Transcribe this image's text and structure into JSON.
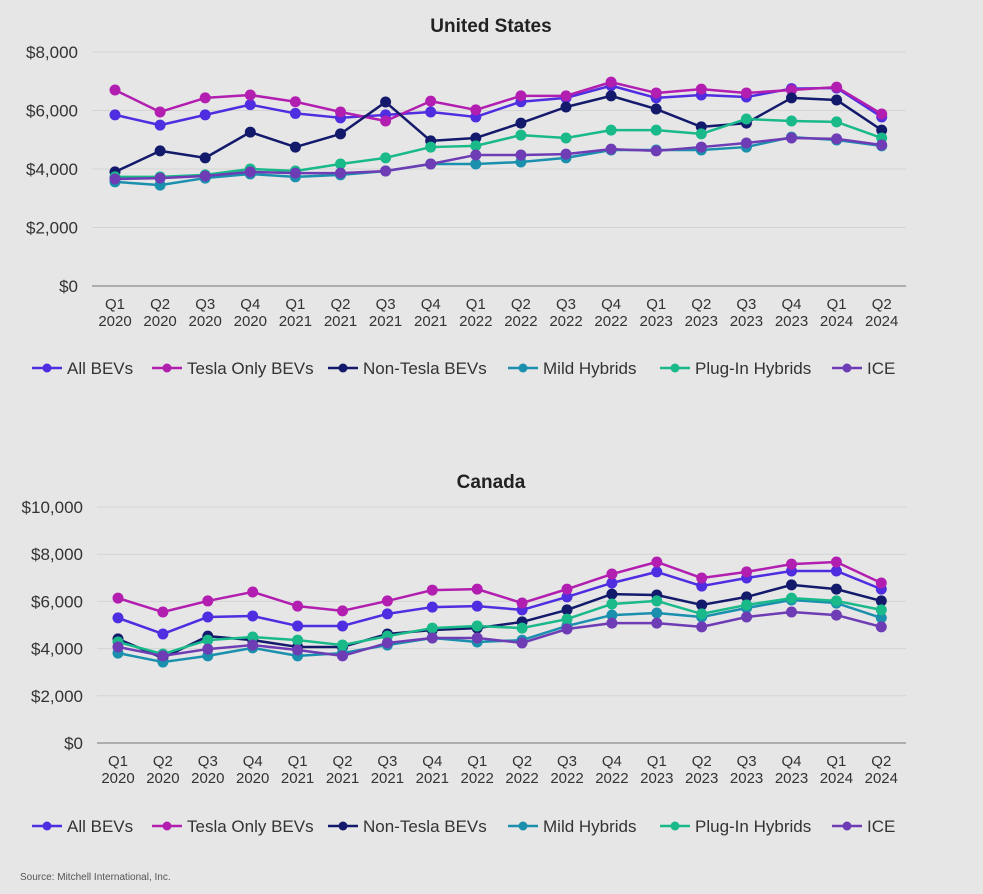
{
  "source": "Source: Mitchell International, Inc.",
  "chart_data": [
    {
      "type": "line",
      "title": "United States",
      "xlabel": "",
      "ylabel": "",
      "ylim": [
        0,
        8000
      ],
      "yticks": [
        0,
        2000,
        4000,
        6000,
        8000
      ],
      "ytick_labels": [
        "$0",
        "$2,000",
        "$4,000",
        "$6,000",
        "$8,000"
      ],
      "grid": true,
      "legend_position": "bottom",
      "categories": [
        "Q1 2020",
        "Q2 2020",
        "Q3 2020",
        "Q4 2020",
        "Q1 2021",
        "Q2 2021",
        "Q3 2021",
        "Q4 2021",
        "Q1 2022",
        "Q2 2022",
        "Q3 2022",
        "Q4 2022",
        "Q1 2023",
        "Q2 2023",
        "Q3 2023",
        "Q4 2023",
        "Q1 2024",
        "Q2 2024"
      ],
      "series": [
        {
          "name": "All BEVs",
          "color": "#4f2de0",
          "values": [
            5850,
            5500,
            5850,
            6200,
            5900,
            5750,
            5850,
            5950,
            5780,
            6300,
            6430,
            6850,
            6430,
            6530,
            6460,
            6750,
            6770,
            5780
          ]
        },
        {
          "name": "Tesla Only BEVs",
          "color": "#b21fb0",
          "values": [
            6700,
            5950,
            6430,
            6530,
            6300,
            5950,
            5640,
            6320,
            6020,
            6500,
            6500,
            6970,
            6600,
            6730,
            6600,
            6700,
            6800,
            5880
          ]
        },
        {
          "name": "Non-Tesla BEVs",
          "color": "#141a6b",
          "values": [
            3900,
            4620,
            4380,
            5260,
            4750,
            5200,
            6290,
            4960,
            5060,
            5570,
            6120,
            6500,
            6050,
            5440,
            5570,
            6430,
            6360,
            5330
          ]
        },
        {
          "name": "Mild Hybrids",
          "color": "#1a90ae",
          "values": [
            3560,
            3450,
            3690,
            3830,
            3730,
            3800,
            3930,
            4170,
            4170,
            4240,
            4380,
            4650,
            4650,
            4650,
            4750,
            5090,
            4990,
            4790
          ]
        },
        {
          "name": "Plug-In Hybrids",
          "color": "#19b98a",
          "values": [
            3730,
            3730,
            3800,
            4000,
            3930,
            4170,
            4380,
            4750,
            4790,
            5160,
            5060,
            5330,
            5330,
            5200,
            5710,
            5640,
            5610,
            5060
          ]
        },
        {
          "name": "ICE",
          "color": "#6e3cb4",
          "values": [
            3660,
            3690,
            3760,
            3900,
            3860,
            3860,
            3930,
            4170,
            4480,
            4480,
            4510,
            4680,
            4620,
            4750,
            4890,
            5060,
            5030,
            4820
          ]
        }
      ]
    },
    {
      "type": "line",
      "title": "Canada",
      "xlabel": "",
      "ylabel": "",
      "ylim": [
        0,
        10000
      ],
      "yticks": [
        0,
        2000,
        4000,
        6000,
        8000,
        10000
      ],
      "ytick_labels": [
        "$0",
        "$2,000",
        "$4,000",
        "$6,000",
        "$8,000",
        "$10,000"
      ],
      "grid": true,
      "legend_position": "bottom",
      "categories": [
        "Q1 2020",
        "Q2 2020",
        "Q3 2020",
        "Q4 2020",
        "Q1 2021",
        "Q2 2021",
        "Q3 2021",
        "Q4 2021",
        "Q1 2022",
        "Q2 2022",
        "Q3 2022",
        "Q4 2022",
        "Q1 2023",
        "Q2 2023",
        "Q3 2023",
        "Q4 2023",
        "Q1 2024",
        "Q2 2024"
      ],
      "series": [
        {
          "name": "All BEVs",
          "color": "#4f2de0",
          "values": [
            5300,
            4620,
            5340,
            5380,
            4960,
            4960,
            5470,
            5760,
            5800,
            5640,
            6190,
            6780,
            7250,
            6650,
            6990,
            7290,
            7290,
            6520
          ]
        },
        {
          "name": "Tesla Only BEVs",
          "color": "#b21fb0",
          "values": [
            6140,
            5550,
            6020,
            6400,
            5800,
            5600,
            6020,
            6480,
            6520,
            5930,
            6520,
            7160,
            7670,
            6990,
            7250,
            7580,
            7670,
            6780
          ]
        },
        {
          "name": "Non-Tesla BEVs",
          "color": "#141a6b",
          "values": [
            4410,
            3600,
            4530,
            4360,
            4070,
            4070,
            4620,
            4790,
            4870,
            5130,
            5640,
            6310,
            6270,
            5850,
            6190,
            6700,
            6520,
            6020
          ]
        },
        {
          "name": "Mild Hybrids",
          "color": "#1a90ae",
          "values": [
            3810,
            3430,
            3690,
            4030,
            3690,
            3810,
            4150,
            4450,
            4280,
            4360,
            4960,
            5420,
            5510,
            5340,
            5720,
            6060,
            5930,
            5300
          ]
        },
        {
          "name": "Plug-In Hybrids",
          "color": "#19b98a",
          "values": [
            4280,
            3770,
            4360,
            4490,
            4360,
            4150,
            4530,
            4870,
            4960,
            4870,
            5250,
            5890,
            6020,
            5470,
            5850,
            6140,
            6020,
            5640
          ]
        },
        {
          "name": "ICE",
          "color": "#6e3cb4",
          "values": [
            4070,
            3690,
            3980,
            4150,
            3940,
            3690,
            4240,
            4450,
            4450,
            4240,
            4830,
            5080,
            5080,
            4920,
            5340,
            5550,
            5420,
            4920
          ]
        }
      ]
    }
  ]
}
